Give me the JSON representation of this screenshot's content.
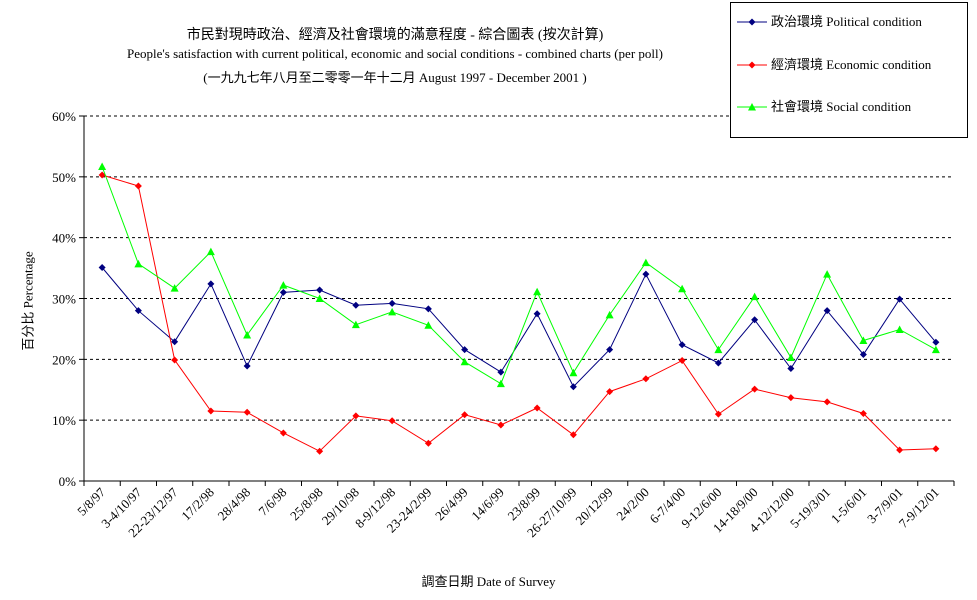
{
  "chart_data": {
    "type": "line",
    "title_lines": [
      "市民對現時政治、經濟及社會環境的滿意程度 - 綜合圖表 (按次計算)",
      "People's satisfaction with current political, economic and social conditions - combined charts  (per poll)",
      "(一九九七年八月至二零零一年十二月 August 1997 - December 2001 )"
    ],
    "xlabel": "調查日期 Date of Survey",
    "ylabel": "百分比 Percentage",
    "ylim": [
      0,
      60
    ],
    "yticks": [
      "0%",
      "10%",
      "20%",
      "30%",
      "40%",
      "50%",
      "60%"
    ],
    "grid": "horizontal dashed",
    "legend_position": "top-right",
    "categories": [
      "5/8/97",
      "3-4/10/97",
      "22-23/12/97",
      "17/2/98",
      "28/4/98",
      "7/6/98",
      "25/8/98",
      "29/10/98",
      "8-9/12/98",
      "23-24/2/99",
      "26/4/99",
      "14/6/99",
      "23/8/99",
      "26-27/10/99",
      "20/12/99",
      "24/2/00",
      "6-7/4/00",
      "9-12/6/00",
      "14-18/9/00",
      "4-12/12/00",
      "5-19/3/01",
      "1-5/6/01",
      "3-7/9/01",
      "7-9/12/01"
    ],
    "series": [
      {
        "name": "政治環境 Political condition",
        "color": "#000080",
        "marker": "diamond",
        "values": [
          35.1,
          28.0,
          22.9,
          32.4,
          18.9,
          31.0,
          31.4,
          28.9,
          29.2,
          28.3,
          21.6,
          17.9,
          27.5,
          15.5,
          21.6,
          34.0,
          22.4,
          19.4,
          26.5,
          18.5,
          28.0,
          20.8,
          29.9,
          22.8
        ]
      },
      {
        "name": "經濟環境 Economic condition",
        "color": "#ff0000",
        "marker": "diamond",
        "values": [
          50.3,
          48.5,
          19.9,
          11.5,
          11.3,
          7.9,
          4.9,
          10.7,
          9.9,
          6.2,
          10.9,
          9.2,
          12.0,
          7.6,
          14.7,
          16.8,
          19.8,
          11.0,
          15.1,
          13.7,
          13.0,
          11.1,
          5.1,
          5.3
        ]
      },
      {
        "name": "社會環境 Social condition",
        "color": "#00ff00",
        "marker": "triangle",
        "values": [
          51.7,
          35.7,
          31.7,
          37.7,
          24.0,
          32.2,
          30.0,
          25.7,
          27.8,
          25.6,
          19.6,
          16.0,
          31.1,
          17.8,
          27.3,
          35.9,
          31.6,
          21.6,
          30.3,
          20.3,
          34.0,
          23.1,
          24.9,
          21.6
        ]
      }
    ]
  }
}
